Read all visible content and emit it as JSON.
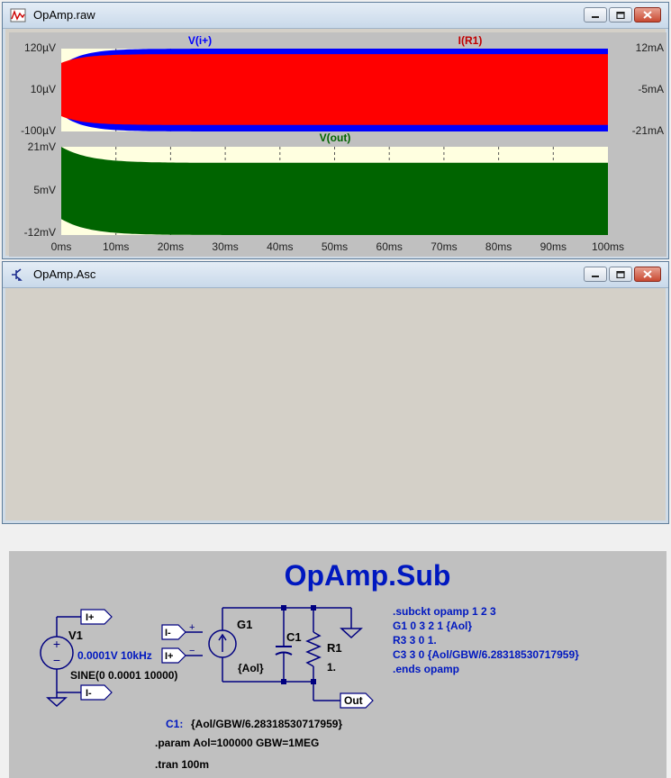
{
  "waveform_window": {
    "title": "OpAmp.raw",
    "pane_top": {
      "trace_left": "V(i+)",
      "trace_right": "I(R1)",
      "left_ticks": [
        "120µV",
        "10µV",
        "-100µV"
      ],
      "right_ticks": [
        "12mA",
        "-5mA",
        "-21mA"
      ]
    },
    "pane_bottom": {
      "trace": "V(out)",
      "left_ticks": [
        "21mV",
        "5mV",
        "-12mV"
      ]
    },
    "x_ticks": [
      "0ms",
      "10ms",
      "20ms",
      "30ms",
      "40ms",
      "50ms",
      "60ms",
      "70ms",
      "80ms",
      "90ms",
      "100ms"
    ],
    "colors": {
      "vi": "#0000ff",
      "ir1": "#ff0000",
      "vout": "#006400",
      "plot_bg": "#ffffe0"
    }
  },
  "schematic_window": {
    "title": "OpAmp.Asc",
    "heading": "OpAmp.Sub",
    "labels": {
      "v1_name": "V1",
      "v1_value": "0.0001V 10kHz",
      "v1_sine": "SINE(0 0.0001 10000)",
      "port_iplus_src": "I+",
      "port_iminus_src": "I-",
      "port_iminus_in": "I-",
      "port_iplus_in": "I+",
      "g1_name": "G1",
      "g1_value": "{Aol}",
      "c1_name": "C1",
      "r1_name": "R1",
      "r1_value": "1.",
      "out_port": "Out",
      "c1_label": "C1:",
      "c1_expr": "{Aol/GBW/6.28318530717959}",
      "param": ".param Aol=100000 GBW=1MEG",
      "tran": ".tran 100m"
    },
    "netlist": [
      ".subckt opamp 1 2 3",
      "G1 0 3 2 1 {Aol}",
      "R3 3 0 1.",
      "C3 3 0 {Aol/GBW/6.28318530717959}",
      ".ends opamp"
    ]
  },
  "chart_data": [
    {
      "type": "line",
      "title": "",
      "series": [
        {
          "name": "V(i+)",
          "axis": "left",
          "color": "#0000ff",
          "note_envelope_uV": {
            "max_start": 75,
            "max_steady": 120,
            "min_start": -55,
            "min_steady": -100
          }
        },
        {
          "name": "I(R1)",
          "axis": "right",
          "color": "#ff0000",
          "note_envelope_mA": {
            "max_start": 7,
            "max_steady": 12,
            "min_start": -16,
            "min_steady": -21
          }
        }
      ],
      "x_range_ms": [
        0,
        100
      ],
      "left_ylim_uV": [
        -100,
        120
      ],
      "right_ylim_mA": [
        -21,
        12
      ],
      "grid": true
    },
    {
      "type": "line",
      "title": "",
      "series": [
        {
          "name": "V(out)",
          "color": "#006400",
          "note_envelope_mV": {
            "max_start": 21,
            "max_steady": 15,
            "min_start": -6,
            "min_steady": -12
          }
        }
      ],
      "x_range_ms": [
        0,
        100
      ],
      "ylim_mV": [
        -12,
        21
      ],
      "grid": true
    }
  ]
}
